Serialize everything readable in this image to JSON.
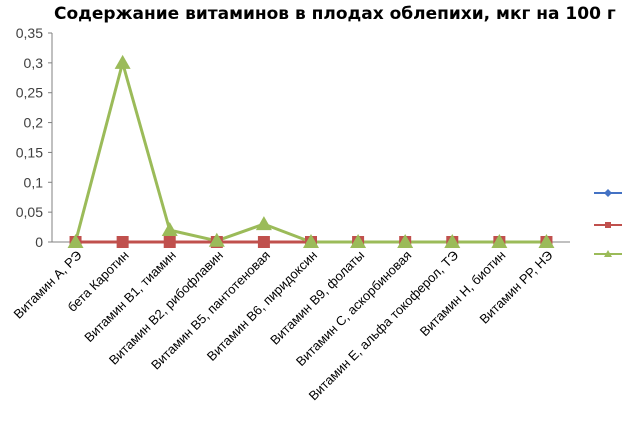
{
  "chart_data": {
    "type": "line",
    "title": "Содержание витаминов в плодах облепихи, мкг на 100 г",
    "xlabel": "",
    "ylabel": "",
    "ylim": [
      0,
      0.35
    ],
    "yticks": [
      "0",
      "0,05",
      "0,1",
      "0,15",
      "0,2",
      "0,25",
      "0,3",
      "0,35"
    ],
    "grid": false,
    "legend_position": "right",
    "categories": [
      "Витамин А, РЭ",
      "бета Каротин",
      "Витамин В1, тиамин",
      "Витамин В2, рибофлавин",
      "Витамин В5, пантотеновая",
      "Витамин В6, пиридоксин",
      "Витамин В9, фолаты",
      "Витамин С, аскорбиновая",
      "Витамин Е, альфа токоферол, ТЭ",
      "Витамин Н, биотин",
      "Витамин РР, НЭ"
    ],
    "series": [
      {
        "color": "#4472C4",
        "marker": "diamond",
        "values": [
          0,
          0,
          0,
          0,
          0,
          0,
          0,
          0,
          0,
          0,
          0
        ]
      },
      {
        "color": "#C0504D",
        "marker": "square",
        "values": [
          0,
          0,
          0,
          0,
          0,
          0,
          0,
          0,
          0,
          0,
          0
        ]
      },
      {
        "color": "#9BBB59",
        "marker": "triangle",
        "values": [
          0,
          0.3,
          0.02,
          0.002,
          0.03,
          0,
          0,
          0,
          0,
          0,
          0
        ]
      }
    ]
  }
}
